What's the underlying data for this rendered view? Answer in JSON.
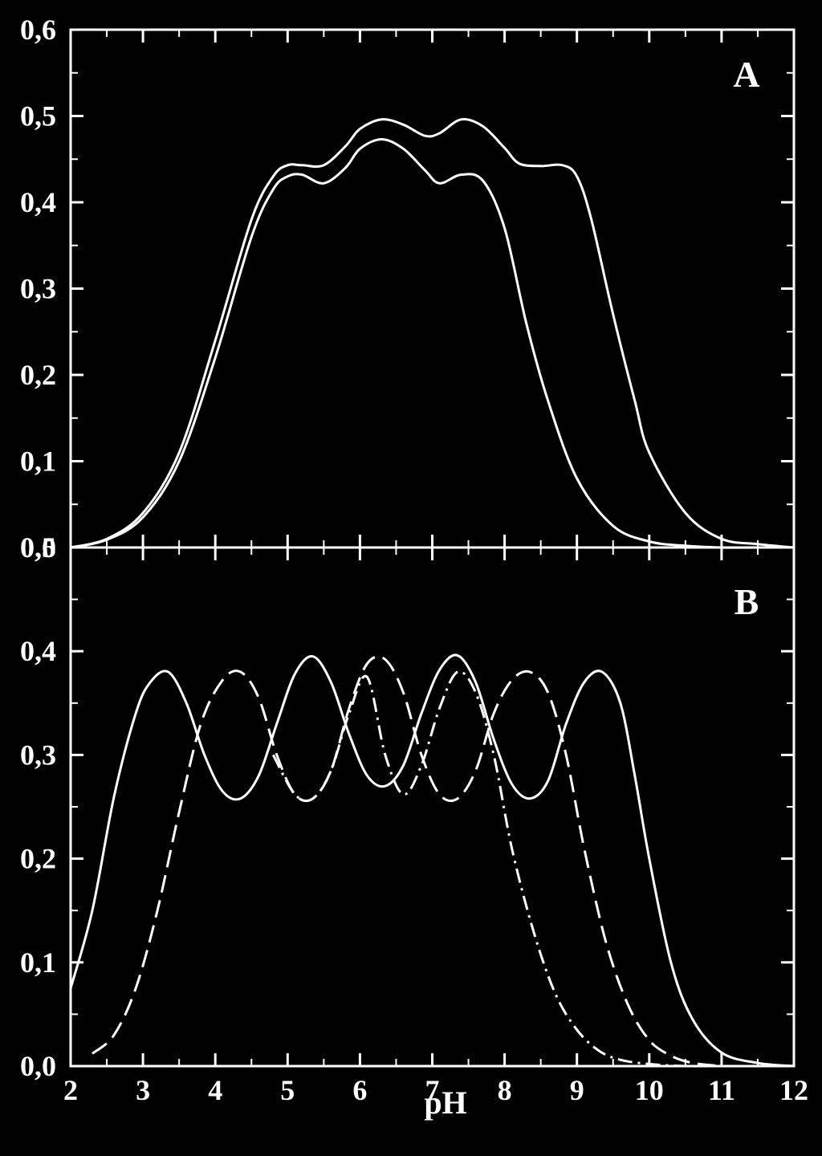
{
  "figure": {
    "background": "#000000",
    "foreground": "#ffffff",
    "xlabel": "pH"
  },
  "chart_data": [
    {
      "type": "line",
      "panel_label": "A",
      "xlim": [
        2,
        12
      ],
      "ylim": [
        0,
        0.6
      ],
      "x_ticks": [
        2,
        3,
        4,
        5,
        6,
        7,
        8,
        9,
        10,
        11,
        12
      ],
      "y_ticks": [
        "0,0",
        "0,1",
        "0,2",
        "0,3",
        "0,4",
        "0,5",
        "0,6"
      ],
      "y_tick_values": [
        0,
        0.1,
        0.2,
        0.3,
        0.4,
        0.5,
        0.6
      ],
      "series": [
        {
          "style": "solid",
          "x": [
            2.0,
            2.5,
            3.0,
            3.5,
            4.0,
            4.5,
            4.8,
            5.0,
            5.2,
            5.5,
            5.8,
            6.0,
            6.3,
            6.6,
            6.9,
            7.1,
            7.4,
            7.7,
            8.0,
            8.2,
            8.5,
            8.8,
            9.0,
            9.2,
            9.5,
            9.8,
            10.0,
            10.5,
            11.0,
            11.5,
            12.0
          ],
          "y": [
            0.0,
            0.01,
            0.04,
            0.11,
            0.24,
            0.38,
            0.43,
            0.443,
            0.443,
            0.443,
            0.465,
            0.485,
            0.496,
            0.49,
            0.477,
            0.48,
            0.496,
            0.488,
            0.463,
            0.445,
            0.442,
            0.443,
            0.43,
            0.38,
            0.27,
            0.17,
            0.11,
            0.04,
            0.01,
            0.004,
            0.0
          ]
        },
        {
          "style": "solid",
          "x": [
            2.0,
            2.5,
            3.0,
            3.5,
            4.0,
            4.5,
            4.8,
            5.0,
            5.2,
            5.5,
            5.8,
            6.0,
            6.3,
            6.6,
            6.9,
            7.1,
            7.4,
            7.7,
            8.0,
            8.3,
            8.6,
            9.0,
            9.5,
            10.0,
            10.5,
            11.0,
            11.5,
            12.0
          ],
          "y": [
            0.0,
            0.009,
            0.035,
            0.1,
            0.22,
            0.36,
            0.415,
            0.43,
            0.432,
            0.422,
            0.44,
            0.462,
            0.473,
            0.462,
            0.437,
            0.422,
            0.432,
            0.425,
            0.37,
            0.26,
            0.17,
            0.08,
            0.025,
            0.007,
            0.002,
            0.0,
            0.0,
            0.0
          ]
        }
      ]
    },
    {
      "type": "line",
      "panel_label": "B",
      "xlim": [
        2,
        12
      ],
      "ylim": [
        0,
        0.5
      ],
      "x_ticks": [
        2,
        3,
        4,
        5,
        6,
        7,
        8,
        9,
        10,
        11,
        12
      ],
      "x_tick_labels": [
        "2",
        "3",
        "4",
        "5",
        "6",
        "7",
        "8",
        "9",
        "10",
        "11",
        "12"
      ],
      "y_ticks": [
        "0,0",
        "0,1",
        "0,2",
        "0,3",
        "0,4",
        "0,5"
      ],
      "y_tick_values": [
        0,
        0.1,
        0.2,
        0.3,
        0.4,
        0.5
      ],
      "series": [
        {
          "style": "solid",
          "x": [
            2.0,
            2.3,
            2.6,
            2.9,
            3.1,
            3.35,
            3.6,
            3.85,
            4.1,
            4.35,
            4.6,
            4.85,
            5.1,
            5.35,
            5.6,
            5.85,
            6.1,
            6.35,
            6.6,
            6.85,
            7.1,
            7.35,
            7.6,
            7.85,
            8.1,
            8.35,
            8.6,
            8.85,
            9.1,
            9.35,
            9.6,
            9.8,
            10.0,
            10.3,
            10.6,
            11.0,
            11.5,
            12.0
          ],
          "y": [
            0.075,
            0.15,
            0.26,
            0.34,
            0.37,
            0.38,
            0.35,
            0.3,
            0.265,
            0.258,
            0.28,
            0.33,
            0.378,
            0.395,
            0.37,
            0.32,
            0.28,
            0.27,
            0.29,
            0.34,
            0.382,
            0.396,
            0.37,
            0.315,
            0.272,
            0.258,
            0.275,
            0.33,
            0.37,
            0.38,
            0.35,
            0.28,
            0.2,
            0.1,
            0.045,
            0.013,
            0.003,
            0.0
          ]
        },
        {
          "style": "dashed",
          "x": [
            2.3,
            2.6,
            2.9,
            3.2,
            3.5,
            3.8,
            4.1,
            4.35,
            4.6,
            4.85,
            5.1,
            5.35,
            5.6,
            5.85,
            6.1,
            6.35,
            6.6,
            6.85,
            7.1,
            7.35,
            7.6,
            7.85,
            8.1,
            8.35,
            8.6,
            8.85,
            9.1,
            9.4,
            9.7,
            10.0,
            10.3,
            10.6,
            11.0
          ],
          "y": [
            0.012,
            0.03,
            0.075,
            0.15,
            0.245,
            0.33,
            0.372,
            0.38,
            0.355,
            0.3,
            0.262,
            0.258,
            0.285,
            0.345,
            0.388,
            0.392,
            0.36,
            0.3,
            0.262,
            0.258,
            0.285,
            0.34,
            0.372,
            0.38,
            0.36,
            0.3,
            0.21,
            0.12,
            0.06,
            0.025,
            0.01,
            0.003,
            0.0
          ]
        },
        {
          "style": "dashdot",
          "x": [
            4.8,
            5.1,
            5.35,
            5.6,
            5.85,
            6.1,
            6.35,
            6.6,
            6.85,
            7.1,
            7.35,
            7.6,
            7.85,
            8.1,
            8.4,
            8.7,
            9.0,
            9.3,
            9.6,
            10.0,
            10.5,
            11.0
          ],
          "y": [
            0.3,
            0.262,
            0.258,
            0.285,
            0.34,
            0.375,
            0.3,
            0.262,
            0.29,
            0.345,
            0.38,
            0.36,
            0.3,
            0.21,
            0.13,
            0.07,
            0.035,
            0.015,
            0.006,
            0.002,
            0.0,
            0.0
          ]
        }
      ]
    }
  ]
}
